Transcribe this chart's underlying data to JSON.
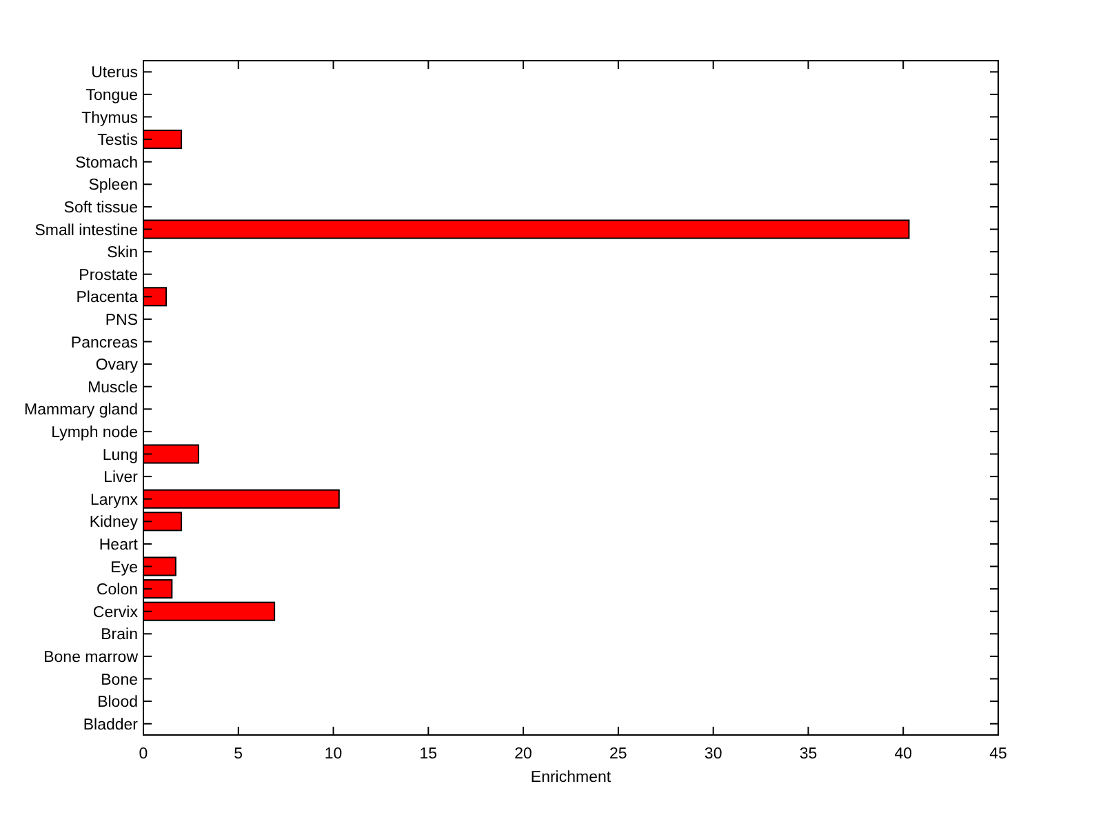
{
  "chart_data": {
    "type": "bar",
    "orientation": "horizontal",
    "xlabel": "Enrichment",
    "categories": [
      "Uterus",
      "Tongue",
      "Thymus",
      "Testis",
      "Stomach",
      "Spleen",
      "Soft tissue",
      "Small intestine",
      "Skin",
      "Prostate",
      "Placenta",
      "PNS",
      "Pancreas",
      "Ovary",
      "Muscle",
      "Mammary gland",
      "Lymph node",
      "Lung",
      "Liver",
      "Larynx",
      "Kidney",
      "Heart",
      "Eye",
      "Colon",
      "Cervix",
      "Brain",
      "Bone marrow",
      "Bone",
      "Blood",
      "Bladder"
    ],
    "values": [
      0,
      0,
      0,
      2.0,
      0,
      0,
      0,
      40.3,
      0,
      0,
      1.2,
      0,
      0,
      0,
      0,
      0,
      0,
      2.9,
      0,
      10.3,
      2.0,
      0,
      1.7,
      1.5,
      6.9,
      0,
      0,
      0,
      0,
      0
    ],
    "color": "#ff0000",
    "xlim": [
      0,
      45
    ],
    "xticks": [
      0,
      5,
      10,
      15,
      20,
      25,
      30,
      35,
      40,
      45
    ],
    "grid": false
  }
}
